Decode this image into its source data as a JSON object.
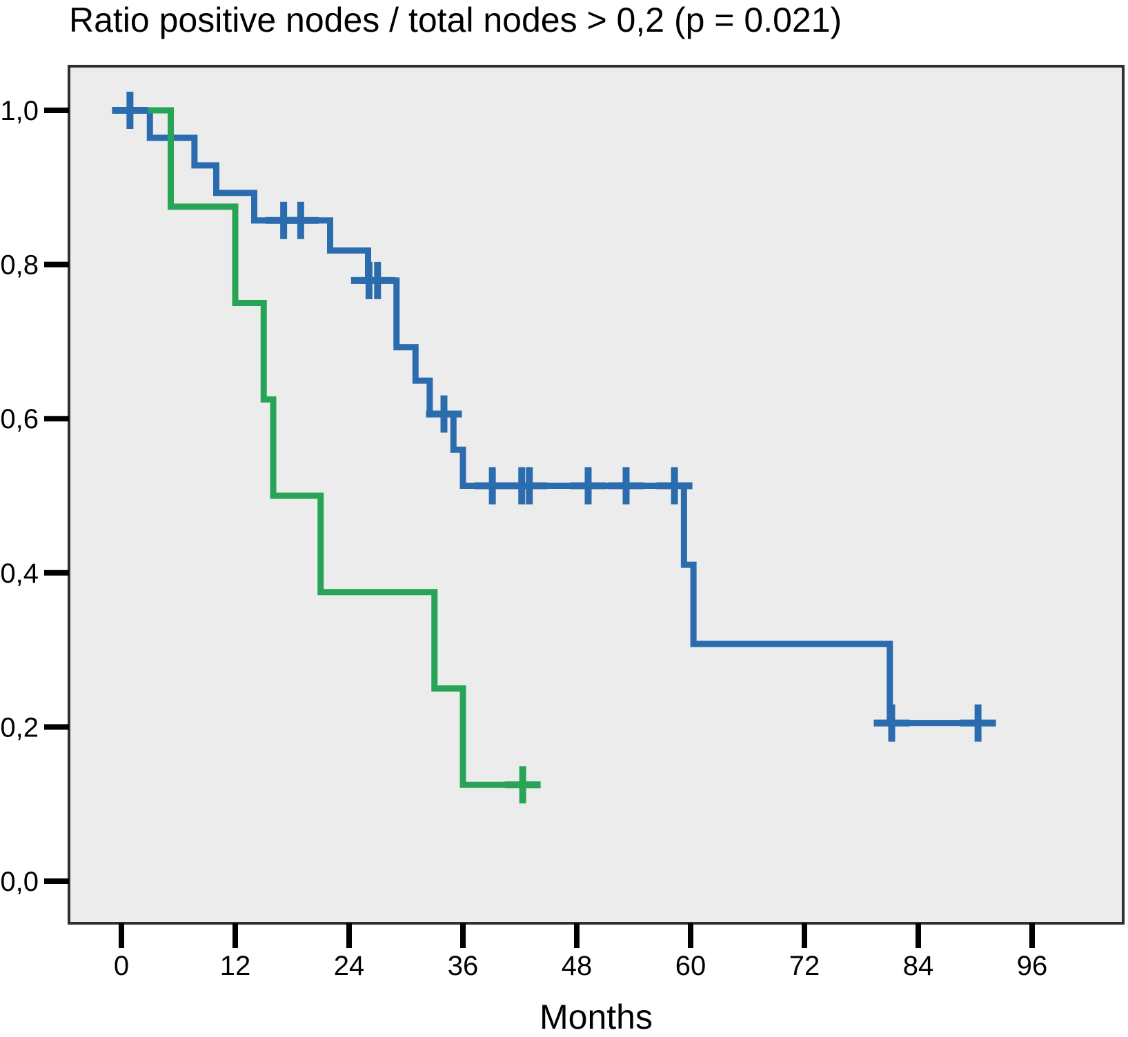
{
  "chart_data": {
    "type": "line",
    "chart_style": "kaplan_meier_step",
    "title": "Ratio positive nodes / total nodes > 0,2 (p = 0.021)",
    "p_value_text": "p = 0.021",
    "xlabel": "Months",
    "ylabel": "",
    "grid": false,
    "legend": "none",
    "xlim": [
      -5.5,
      100.5
    ],
    "ylim": [
      -0.055,
      1.055
    ],
    "x_ticks": [
      0,
      12,
      24,
      36,
      48,
      60,
      72,
      84,
      96
    ],
    "y_ticks": [
      {
        "value": 1.0,
        "label": "1,0"
      },
      {
        "value": 0.8,
        "label": "0,8"
      },
      {
        "value": 0.6,
        "label": "0,6"
      },
      {
        "value": 0.4,
        "label": "0,4"
      },
      {
        "value": 0.2,
        "label": "0,2"
      },
      {
        "value": 0.0,
        "label": "0,0"
      }
    ],
    "series": [
      {
        "name": "blue",
        "color": "#2A6CAD",
        "steps": [
          [
            0,
            1.0
          ],
          [
            3,
            0.9643
          ],
          [
            7.7,
            0.9286
          ],
          [
            10,
            0.8929
          ],
          [
            14,
            0.8571
          ],
          [
            22,
            0.8182
          ],
          [
            26,
            0.7792
          ],
          [
            29,
            0.6926
          ],
          [
            31,
            0.6493
          ],
          [
            32.5,
            0.606
          ],
          [
            35,
            0.5597
          ],
          [
            36,
            0.513
          ],
          [
            59.3,
            0.4104
          ],
          [
            60.3,
            0.3078
          ],
          [
            81,
            0.2052
          ]
        ],
        "end_month": 90.6,
        "censor_marks": [
          [
            0.9,
            1.0
          ],
          [
            17.1,
            0.8571
          ],
          [
            18.9,
            0.8571
          ],
          [
            26.1,
            0.7792
          ],
          [
            27,
            0.7792
          ],
          [
            34,
            0.606
          ],
          [
            39.1,
            0.513
          ],
          [
            42.2,
            0.513
          ],
          [
            43,
            0.513
          ],
          [
            49.2,
            0.513
          ],
          [
            53.2,
            0.513
          ],
          [
            58.3,
            0.513
          ],
          [
            81.2,
            0.2052
          ],
          [
            90.3,
            0.2052
          ]
        ]
      },
      {
        "name": "green",
        "color": "#28A457",
        "steps": [
          [
            0,
            1.0
          ],
          [
            5.2,
            0.875
          ],
          [
            12,
            0.75
          ],
          [
            15,
            0.625
          ],
          [
            16,
            0.5
          ],
          [
            21,
            0.375
          ],
          [
            33,
            0.25
          ],
          [
            36,
            0.125
          ]
        ],
        "end_month": 43.1,
        "censor_marks": [
          [
            42.3,
            0.125
          ]
        ]
      }
    ]
  },
  "colors": {
    "plot_background": "#ECECEC",
    "plot_border": "#2F2F2F",
    "axis_ticks": "#000000",
    "text": "#000000"
  }
}
